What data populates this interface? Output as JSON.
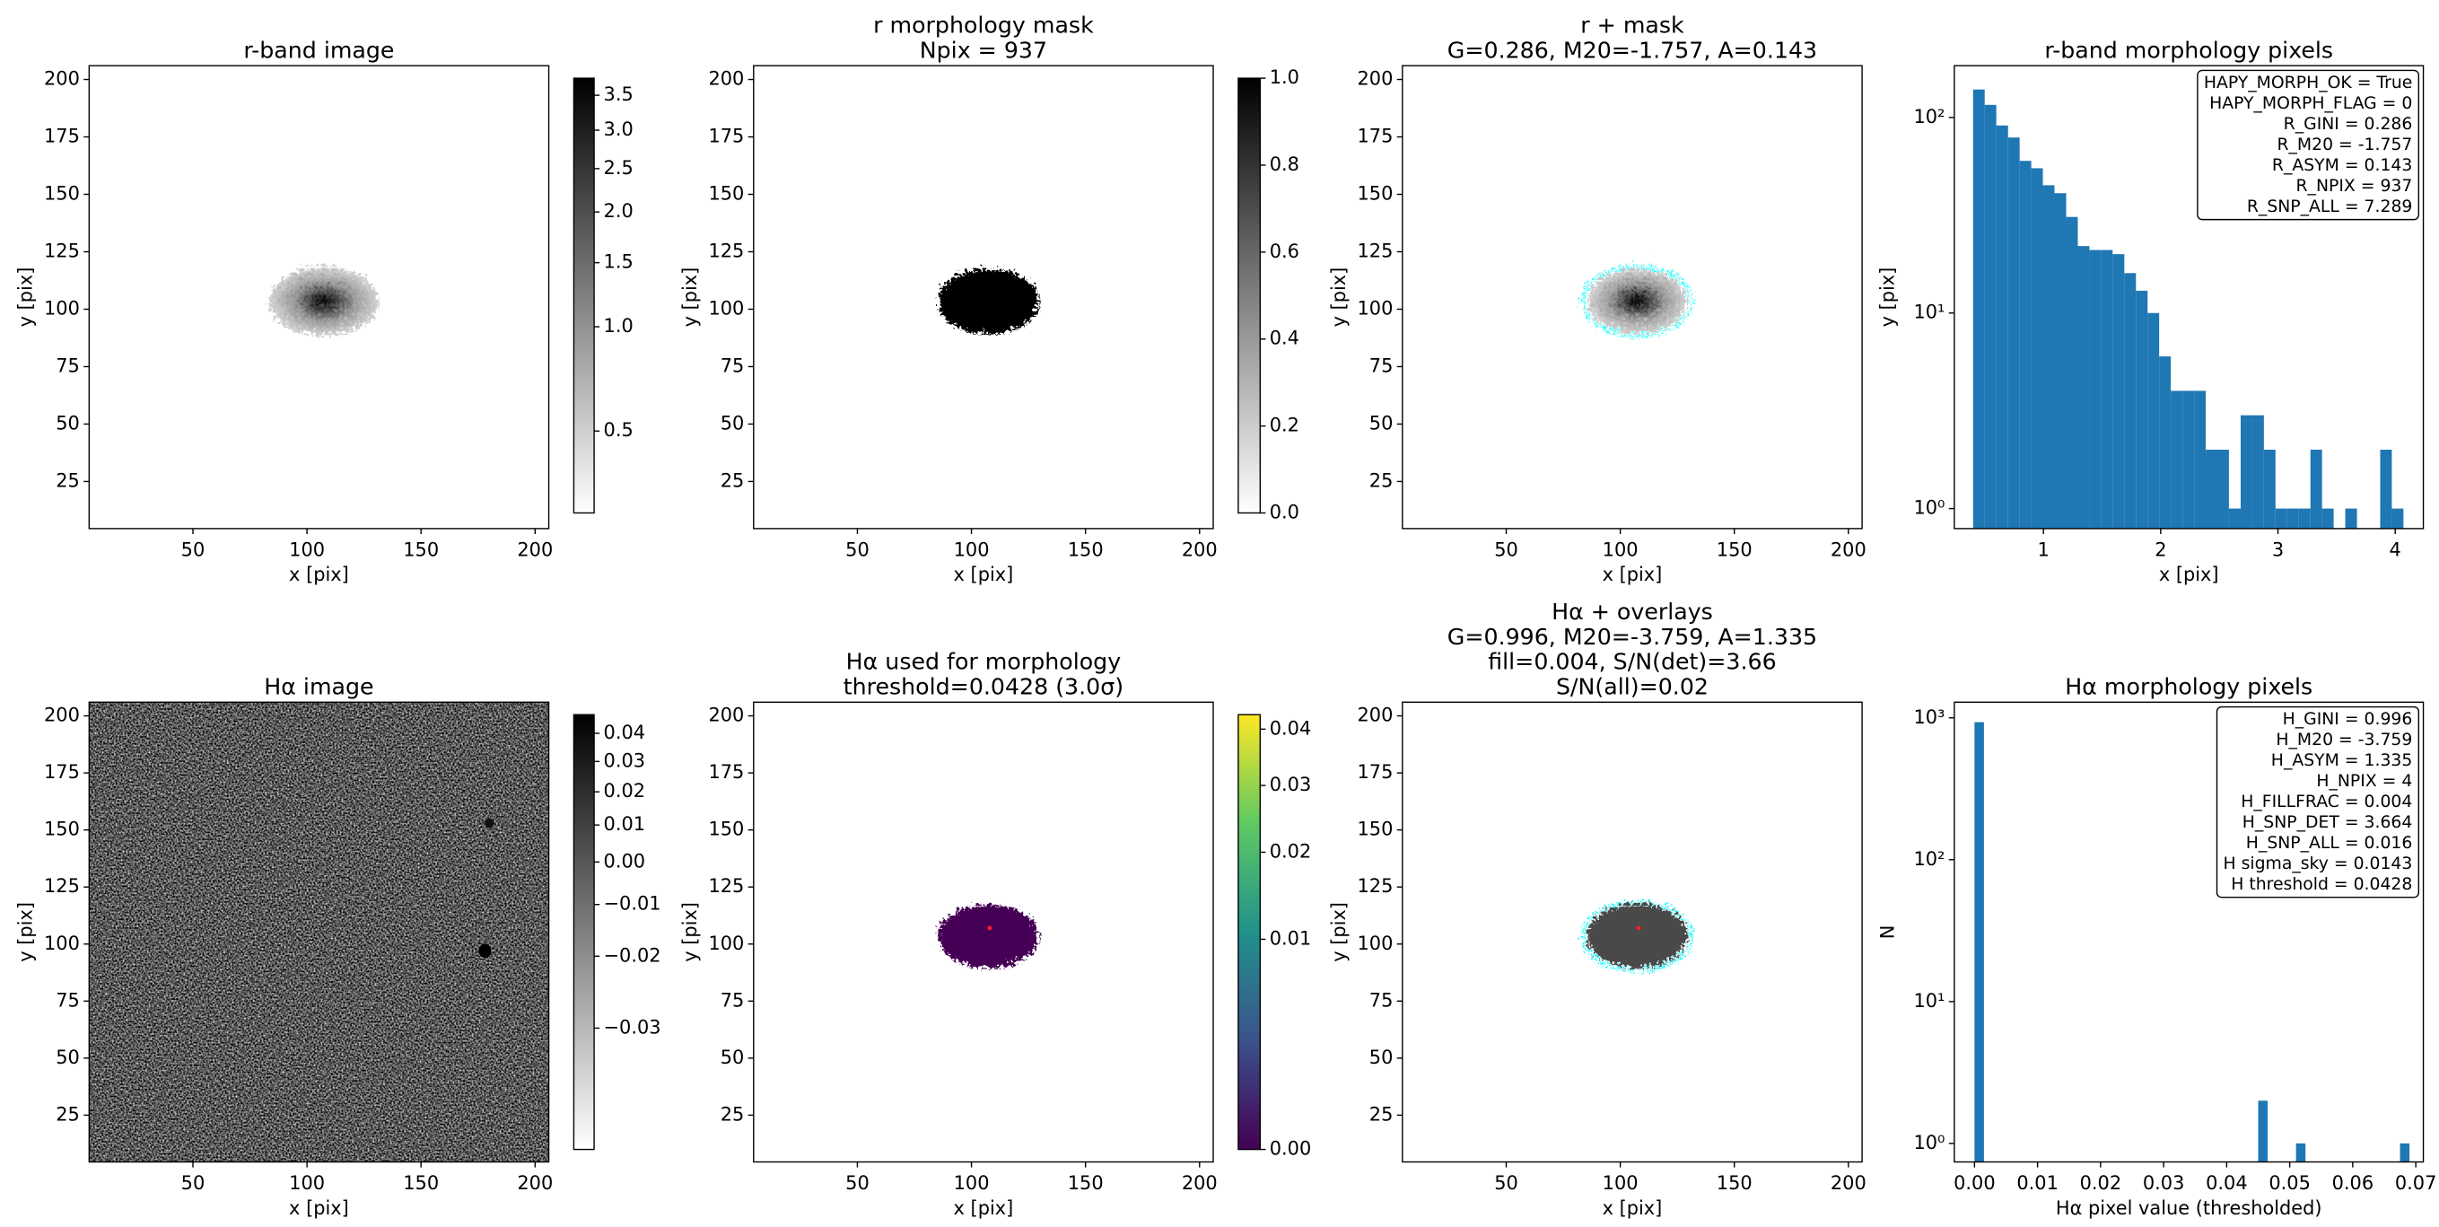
{
  "chart_data": [
    {
      "type": "image",
      "title": [
        "r-band image"
      ],
      "xlabel": "x [pix]",
      "ylabel": "y [pix]",
      "xlim": [
        4.5,
        206
      ],
      "ylim": [
        4.5,
        206
      ],
      "xticks": [
        50,
        100,
        150,
        200
      ],
      "yticks": [
        25,
        50,
        75,
        100,
        125,
        150,
        175,
        200
      ],
      "cmap": "gray_r",
      "cbar_stretch": "sqrt",
      "cbar_lim": [
        0.38,
        3.76
      ],
      "cbar_ticks": [
        0.5,
        {
          "value": 1,
          "label": "1.0"
        },
        1.5,
        {
          "value": 2,
          "label": "2.0"
        },
        2.5,
        {
          "value": 3,
          "label": "3.0"
        },
        3.5
      ]
    },
    {
      "type": "image",
      "title": [
        "r morphology mask",
        "Npix = 937"
      ],
      "xlabel": "x [pix]",
      "ylabel": "y [pix]",
      "xlim": [
        4.5,
        206
      ],
      "ylim": [
        4.5,
        206
      ],
      "xticks": [
        50,
        100,
        150,
        200
      ],
      "yticks": [
        25,
        50,
        75,
        100,
        125,
        150,
        175,
        200
      ],
      "cmap": "gray_r",
      "cbar_stretch": "linear",
      "cbar_lim": [
        0,
        1
      ],
      "cbar_ticks": [
        {
          "value": 0,
          "label": "0.0"
        },
        0.2,
        0.4,
        0.6,
        0.8,
        {
          "value": 1,
          "label": "1.0"
        }
      ]
    },
    {
      "type": "image",
      "title": [
        "r + mask",
        "G=0.286, M20=-1.757, A=0.143"
      ],
      "xlabel": "x [pix]",
      "ylabel": "y [pix]",
      "xlim": [
        4.5,
        206
      ],
      "ylim": [
        4.5,
        206
      ],
      "xticks": [
        50,
        100,
        150,
        200
      ],
      "yticks": [
        25,
        50,
        75,
        100,
        125,
        150,
        175,
        200
      ]
    },
    {
      "type": "histogram",
      "title": [
        "r-band morphology pixels"
      ],
      "xlabel": "x [pix]",
      "ylabel": "y [pix]",
      "bins": [
        0.4,
        0.499,
        0.598,
        0.698,
        0.797,
        0.896,
        0.995,
        1.094,
        1.194,
        1.293,
        1.392,
        1.491,
        1.59,
        1.69,
        1.789,
        1.888,
        1.987,
        2.086,
        2.186,
        2.285,
        2.384,
        2.483,
        2.582,
        2.682,
        2.781,
        2.88,
        2.979,
        3.078,
        3.178,
        3.277,
        3.376,
        3.475,
        3.574,
        3.674,
        3.773,
        3.872,
        3.971,
        4.07
      ],
      "values": [
        139,
        116,
        91,
        79,
        60,
        55,
        45,
        41,
        31,
        22,
        21,
        21,
        20,
        16,
        13,
        10,
        6,
        4,
        4,
        4,
        2,
        2,
        1,
        3,
        3,
        2,
        1,
        1,
        1,
        2,
        1,
        0,
        1,
        0,
        0,
        2,
        1
      ],
      "color": "#1f77b4",
      "log_y": true,
      "xlim": [
        0.24,
        4.24
      ],
      "ylim": [
        0.79,
        184
      ],
      "xticks": [
        1,
        2,
        3,
        4
      ],
      "yticks": [
        {
          "value": 1,
          "label": "10⁰"
        },
        {
          "value": 10,
          "label": "10¹"
        },
        {
          "value": 100,
          "label": "10²"
        }
      ],
      "annotation": [
        "HAPY_MORPH_OK = True",
        "HAPY_MORPH_FLAG = 0",
        "R_GINI = 0.286",
        "R_M20 = -1.757",
        "R_ASYM = 0.143",
        "R_NPIX = 937",
        "R_SNP_ALL = 7.289"
      ]
    },
    {
      "type": "image",
      "title": [
        "Hα image"
      ],
      "xlabel": "x [pix]",
      "ylabel": "y [pix]",
      "xlim": [
        4.5,
        206
      ],
      "ylim": [
        4.5,
        206
      ],
      "xticks": [
        50,
        100,
        150,
        200
      ],
      "yticks": [
        25,
        50,
        75,
        100,
        125,
        150,
        175,
        200
      ],
      "cmap": "gray_r",
      "cbar_stretch": "sqrt",
      "cbar_lim": [
        -0.0365,
        0.047
      ],
      "cbar_ticks": [
        0.04,
        0.03,
        0.02,
        0.01,
        {
          "value": 0,
          "label": "0.00"
        },
        {
          "value": -0.01,
          "label": "−0.01"
        },
        {
          "value": -0.02,
          "label": "−0.02"
        },
        {
          "value": -0.03,
          "label": "−0.03"
        }
      ]
    },
    {
      "type": "image",
      "title": [
        "Hα used for morphology",
        "threshold=0.0428 (3.0σ)"
      ],
      "xlabel": "x [pix]",
      "ylabel": "y [pix]",
      "xlim": [
        4.5,
        206
      ],
      "ylim": [
        4.5,
        206
      ],
      "xticks": [
        50,
        100,
        150,
        200
      ],
      "yticks": [
        25,
        50,
        75,
        100,
        125,
        150,
        175,
        200
      ],
      "cmap": "viridis",
      "cbar_stretch": "sqrt",
      "cbar_lim": [
        0,
        0.0428
      ],
      "cbar_ticks": [
        {
          "value": 0,
          "label": "0.00"
        },
        0.01,
        0.02,
        0.03,
        0.04
      ]
    },
    {
      "type": "image",
      "title": [
        "Hα + overlays",
        "G=0.996, M20=-3.759, A=1.335",
        "fill=0.004, S/N(det)=3.66",
        "S/N(all)=0.02"
      ],
      "xlabel": "x [pix]",
      "ylabel": "y [pix]",
      "xlim": [
        4.5,
        206
      ],
      "ylim": [
        4.5,
        206
      ],
      "xticks": [
        50,
        100,
        150,
        200
      ],
      "yticks": [
        25,
        50,
        75,
        100,
        125,
        150,
        175,
        200
      ]
    },
    {
      "type": "histogram",
      "title": [
        "Hα morphology pixels"
      ],
      "xlabel": "Hα pixel value (thresholded)",
      "ylabel": "N",
      "bins": [
        0,
        0.0015,
        0.003,
        0.0045,
        0.006,
        0.0075,
        0.009,
        0.0105,
        0.012,
        0.0135,
        0.015,
        0.0165,
        0.018,
        0.0195,
        0.021,
        0.0225,
        0.024,
        0.0255,
        0.027,
        0.0285,
        0.03,
        0.0315,
        0.033,
        0.0345,
        0.036,
        0.0375,
        0.039,
        0.0405,
        0.042,
        0.0435,
        0.045,
        0.0465,
        0.048,
        0.0495,
        0.051,
        0.0525,
        0.054,
        0.0555,
        0.057,
        0.0585,
        0.06,
        0.0615,
        0.063,
        0.0645,
        0.066,
        0.0675,
        0.069
      ],
      "values": [
        933,
        0,
        0,
        0,
        0,
        0,
        0,
        0,
        0,
        0,
        0,
        0,
        0,
        0,
        0,
        0,
        0,
        0,
        0,
        0,
        0,
        0,
        0,
        0,
        0,
        0,
        0,
        0,
        0,
        0,
        2,
        0,
        0,
        0,
        1,
        0,
        0,
        0,
        0,
        0,
        0,
        0,
        0,
        0,
        0,
        1
      ],
      "color": "#1f77b4",
      "log_y": true,
      "xlim": [
        -0.0032,
        0.0712
      ],
      "ylim": [
        0.74,
        1290
      ],
      "xticks": [
        {
          "value": 0,
          "label": "0.00"
        },
        0.01,
        0.02,
        0.03,
        0.04,
        0.05,
        0.06,
        0.07
      ],
      "yticks": [
        {
          "value": 1,
          "label": "10⁰"
        },
        {
          "value": 10,
          "label": "10¹"
        },
        {
          "value": 100,
          "label": "10²"
        },
        {
          "value": 1000,
          "label": "10³"
        }
      ],
      "annotation": [
        "H_GINI = 0.996",
        "H_M20 = -3.759",
        "H_ASYM = 1.335",
        "H_NPIX = 4",
        "H_FILLFRAC = 0.004",
        "H_SNP_DET = 3.664",
        "H_SNP_ALL = 0.016",
        "H sigma_sky = 0.0143",
        "H threshold = 0.0428"
      ]
    }
  ]
}
